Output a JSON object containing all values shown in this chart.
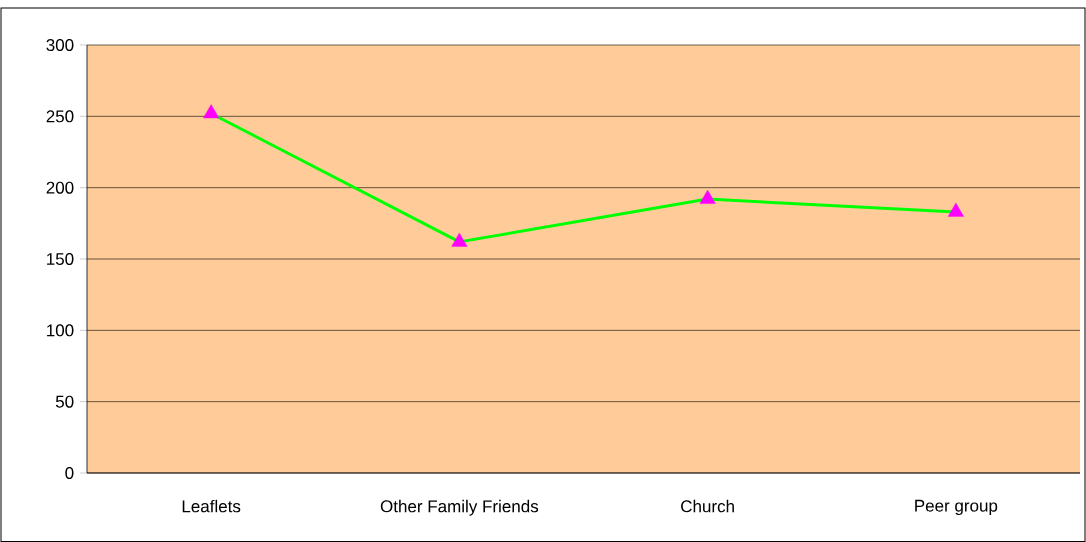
{
  "chart_data": {
    "type": "line",
    "categories": [
      "Leaflets",
      "Other Family Friends",
      "Church",
      "Peer group"
    ],
    "series": [
      {
        "color": "#00ff00",
        "colors": [
          "#ff00ff",
          "#ff00ff",
          "#ff00ff",
          "#ff00ff"
        ],
        "values": [
          252,
          162,
          192,
          183
        ]
      }
    ],
    "ylim": [
      0,
      300
    ],
    "yticks": [
      0,
      50,
      100,
      150,
      200,
      250,
      300
    ],
    "grid": "y",
    "marker": "triangle",
    "line_style": "solid"
  }
}
